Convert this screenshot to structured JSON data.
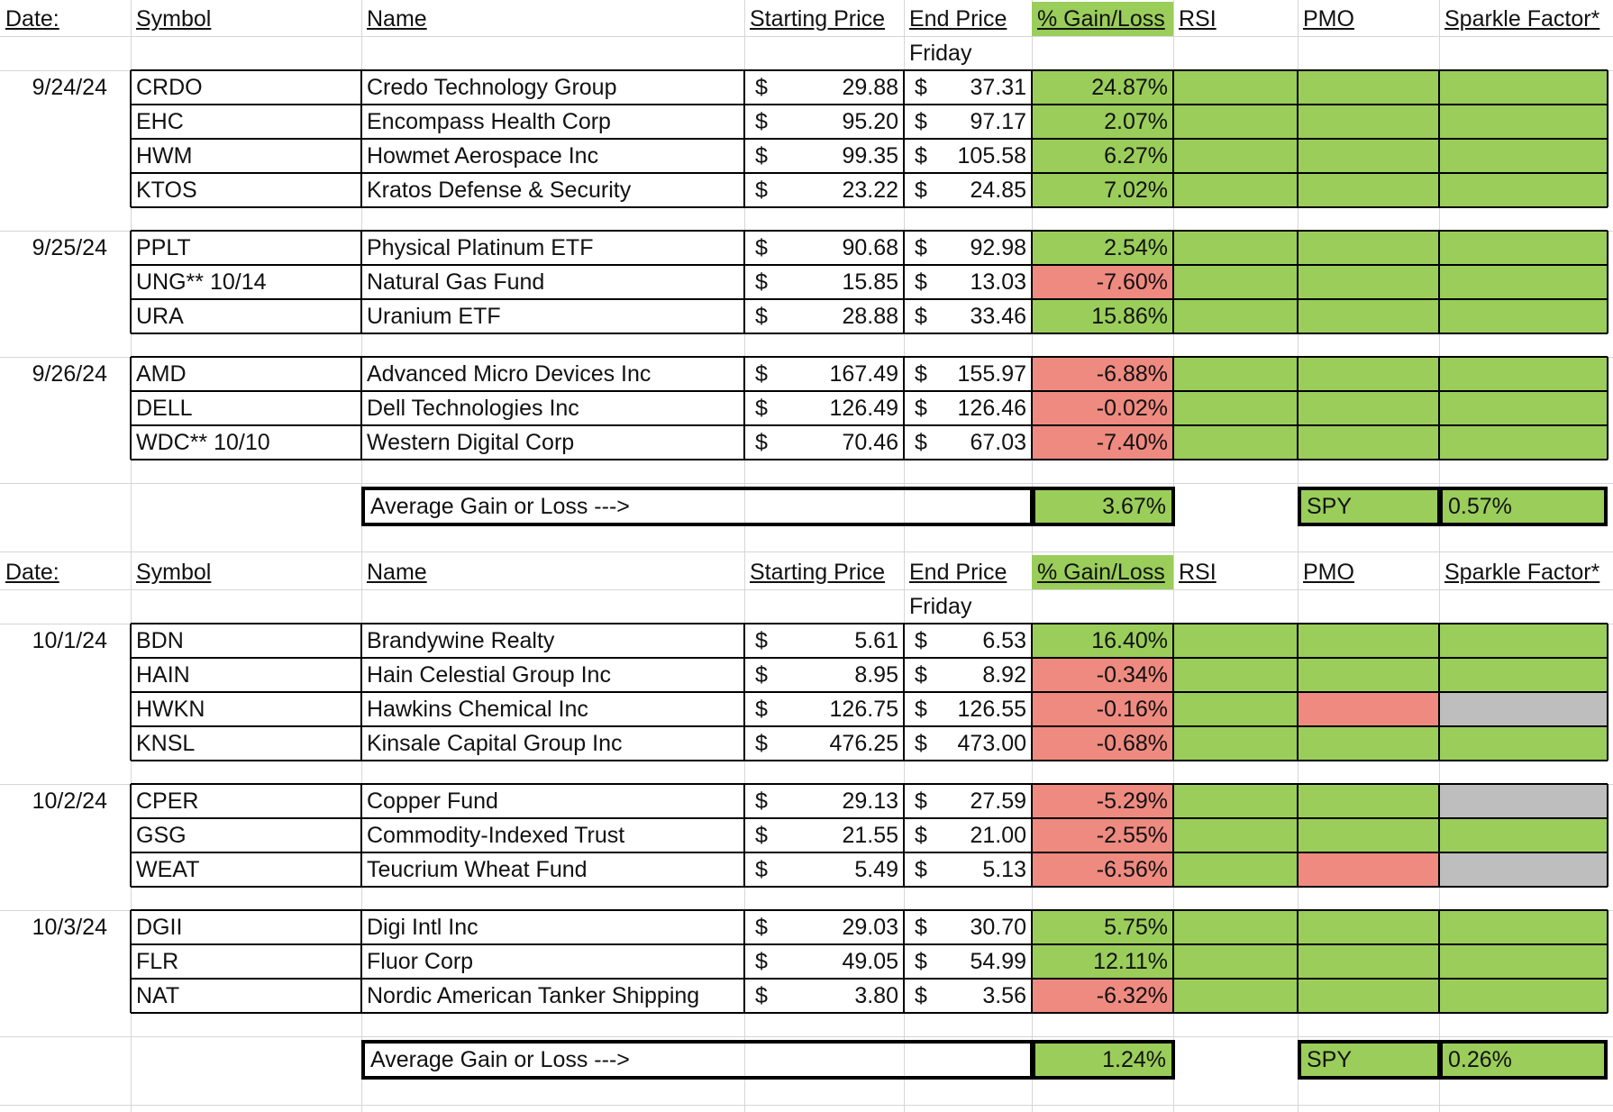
{
  "colors": {
    "gain": "#9ACD5A",
    "loss": "#EE8A80",
    "neutral": "#BEBEBE"
  },
  "headers": {
    "date": "Date:",
    "symbol": "Symbol",
    "name": "Name",
    "start": "Starting Price",
    "end": "End Price",
    "gain": "% Gain/Loss",
    "rsi": "RSI",
    "pmo": "PMO",
    "sparkle": "Sparkle Factor*",
    "friday": "Friday"
  },
  "sections": [
    {
      "groups": [
        {
          "date": "9/24/24",
          "rows": [
            {
              "symbol": "CRDO",
              "name": "Credo Technology Group",
              "start_cur": "$",
              "start": "29.88",
              "end_cur": "$",
              "end": "37.31",
              "gain": "24.87%",
              "gain_color": "green",
              "rsi": "green",
              "pmo": "green",
              "sparkle": "green"
            },
            {
              "symbol": "EHC",
              "name": "Encompass Health Corp",
              "start_cur": "$",
              "start": "95.20",
              "end_cur": "$",
              "end": "97.17",
              "gain": "2.07%",
              "gain_color": "green",
              "rsi": "green",
              "pmo": "green",
              "sparkle": "green"
            },
            {
              "symbol": "HWM",
              "name": "Howmet Aerospace Inc",
              "start_cur": "$",
              "start": "99.35",
              "end_cur": "$",
              "end": "105.58",
              "gain": "6.27%",
              "gain_color": "green",
              "rsi": "green",
              "pmo": "green",
              "sparkle": "green"
            },
            {
              "symbol": "KTOS",
              "name": "Kratos Defense & Security",
              "start_cur": "$",
              "start": "23.22",
              "end_cur": "$",
              "end": "24.85",
              "gain": "7.02%",
              "gain_color": "green",
              "rsi": "green",
              "pmo": "green",
              "sparkle": "green"
            }
          ]
        },
        {
          "date": "9/25/24",
          "rows": [
            {
              "symbol": "PPLT",
              "name": "Physical Platinum ETF",
              "start_cur": "$",
              "start": "90.68",
              "end_cur": "$",
              "end": "92.98",
              "gain": "2.54%",
              "gain_color": "green",
              "rsi": "green",
              "pmo": "green",
              "sparkle": "green"
            },
            {
              "symbol": "UNG** 10/14",
              "name": "Natural Gas Fund",
              "start_cur": "$",
              "start": "15.85",
              "end_cur": "$",
              "end": "13.03",
              "gain": "-7.60%",
              "gain_color": "red",
              "rsi": "green",
              "pmo": "green",
              "sparkle": "green"
            },
            {
              "symbol": "URA",
              "name": "Uranium ETF",
              "start_cur": "$",
              "start": "28.88",
              "end_cur": "$",
              "end": "33.46",
              "gain": "15.86%",
              "gain_color": "green",
              "rsi": "green",
              "pmo": "green",
              "sparkle": "green"
            }
          ]
        },
        {
          "date": "9/26/24",
          "rows": [
            {
              "symbol": "AMD",
              "name": "Advanced Micro Devices Inc",
              "start_cur": "$",
              "start": "167.49",
              "end_cur": "$",
              "end": "155.97",
              "gain": "-6.88%",
              "gain_color": "red",
              "rsi": "green",
              "pmo": "green",
              "sparkle": "green"
            },
            {
              "symbol": "DELL",
              "name": "Dell Technologies Inc",
              "start_cur": "$",
              "start": "126.49",
              "end_cur": "$",
              "end": "126.46",
              "gain": "-0.02%",
              "gain_color": "red",
              "rsi": "green",
              "pmo": "green",
              "sparkle": "green"
            },
            {
              "symbol": "WDC** 10/10",
              "name": "Western Digital Corp",
              "start_cur": "$",
              "start": "70.46",
              "end_cur": "$",
              "end": "67.03",
              "gain": "-7.40%",
              "gain_color": "red",
              "rsi": "green",
              "pmo": "green",
              "sparkle": "green"
            }
          ]
        }
      ],
      "summary": {
        "label": "Average Gain or Loss --->",
        "value": "3.67%",
        "spy_label": "SPY",
        "spy_value": "0.57%"
      }
    },
    {
      "groups": [
        {
          "date": "10/1/24",
          "rows": [
            {
              "symbol": "BDN",
              "name": "Brandywine Realty",
              "start_cur": "$",
              "start": "5.61",
              "end_cur": "$",
              "end": "6.53",
              "gain": "16.40%",
              "gain_color": "green",
              "rsi": "green",
              "pmo": "green",
              "sparkle": "green"
            },
            {
              "symbol": "HAIN",
              "name": "Hain Celestial Group Inc",
              "start_cur": "$",
              "start": "8.95",
              "end_cur": "$",
              "end": "8.92",
              "gain": "-0.34%",
              "gain_color": "red",
              "rsi": "green",
              "pmo": "green",
              "sparkle": "green"
            },
            {
              "symbol": "HWKN",
              "name": "Hawkins Chemical Inc",
              "start_cur": "$",
              "start": "126.75",
              "end_cur": "$",
              "end": "126.55",
              "gain": "-0.16%",
              "gain_color": "red",
              "rsi": "green",
              "pmo": "red",
              "sparkle": "gray"
            },
            {
              "symbol": "KNSL",
              "name": "Kinsale Capital Group Inc",
              "start_cur": "$",
              "start": "476.25",
              "end_cur": "$",
              "end": "473.00",
              "gain": "-0.68%",
              "gain_color": "red",
              "rsi": "green",
              "pmo": "green",
              "sparkle": "green"
            }
          ]
        },
        {
          "date": "10/2/24",
          "rows": [
            {
              "symbol": "CPER",
              "name": "Copper Fund",
              "start_cur": "$",
              "start": "29.13",
              "end_cur": "$",
              "end": "27.59",
              "gain": "-5.29%",
              "gain_color": "red",
              "rsi": "green",
              "pmo": "green",
              "sparkle": "gray"
            },
            {
              "symbol": "GSG",
              "name": "Commodity-Indexed Trust",
              "start_cur": "$",
              "start": "21.55",
              "end_cur": "$",
              "end": "21.00",
              "gain": "-2.55%",
              "gain_color": "red",
              "rsi": "green",
              "pmo": "green",
              "sparkle": "green"
            },
            {
              "symbol": "WEAT",
              "name": "Teucrium Wheat Fund",
              "start_cur": "$",
              "start": "5.49",
              "end_cur": "$",
              "end": "5.13",
              "gain": "-6.56%",
              "gain_color": "red",
              "rsi": "green",
              "pmo": "red",
              "sparkle": "gray"
            }
          ]
        },
        {
          "date": "10/3/24",
          "rows": [
            {
              "symbol": "DGII",
              "name": "Digi Intl Inc",
              "start_cur": "$",
              "start": "29.03",
              "end_cur": "$",
              "end": "30.70",
              "gain": "5.75%",
              "gain_color": "green",
              "rsi": "green",
              "pmo": "green",
              "sparkle": "green"
            },
            {
              "symbol": "FLR",
              "name": "Fluor Corp",
              "start_cur": "$",
              "start": "49.05",
              "end_cur": "$",
              "end": "54.99",
              "gain": "12.11%",
              "gain_color": "green",
              "rsi": "green",
              "pmo": "green",
              "sparkle": "green"
            },
            {
              "symbol": "NAT",
              "name": "Nordic American Tanker Shipping",
              "start_cur": "$",
              "start": "3.80",
              "end_cur": "$",
              "end": "3.56",
              "gain": "-6.32%",
              "gain_color": "red",
              "rsi": "green",
              "pmo": "green",
              "sparkle": "green"
            }
          ]
        }
      ],
      "summary": {
        "label": "Average Gain or Loss --->",
        "value": "1.24%",
        "spy_label": "SPY",
        "spy_value": "0.26%"
      }
    }
  ]
}
